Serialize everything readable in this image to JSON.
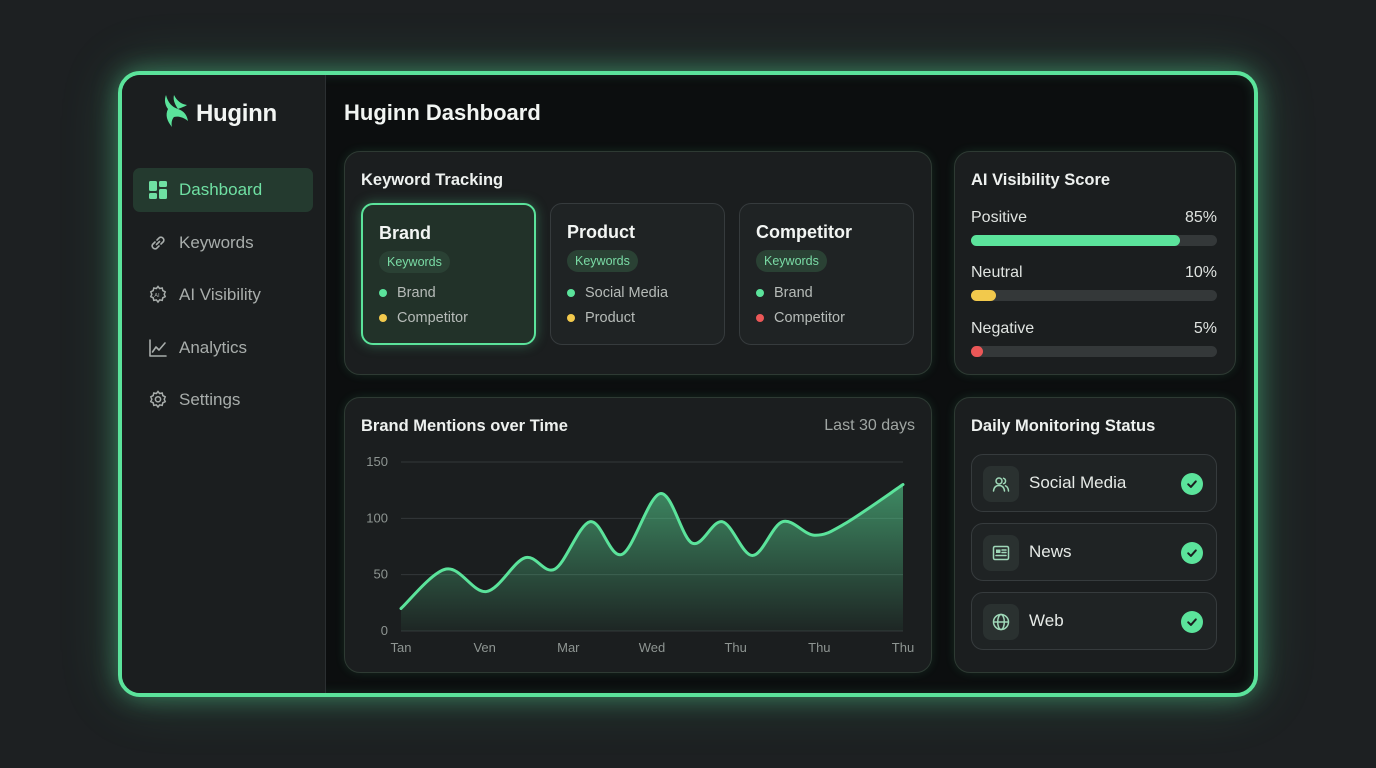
{
  "app": {
    "name": "Huginn"
  },
  "sidebar": {
    "items": [
      {
        "label": "Dashboard",
        "icon": "dashboard-icon",
        "active": true
      },
      {
        "label": "Keywords",
        "icon": "link-icon",
        "active": false
      },
      {
        "label": "AI Visibility",
        "icon": "ai-gear-icon",
        "active": false
      },
      {
        "label": "Analytics",
        "icon": "line-chart-icon",
        "active": false
      },
      {
        "label": "Settings",
        "icon": "gear-icon",
        "active": false
      }
    ]
  },
  "header": {
    "title": "Huginn Dashboard"
  },
  "keyword_tracking": {
    "title": "Keyword Tracking",
    "cards": [
      {
        "name": "Brand",
        "badge": "Keywords",
        "items": [
          {
            "label": "Brand",
            "color": "#5be39b"
          },
          {
            "label": "Competitor",
            "color": "#f2c94c"
          }
        ]
      },
      {
        "name": "Product",
        "badge": "Keywords",
        "items": [
          {
            "label": "Social Media",
            "color": "#5be39b"
          },
          {
            "label": "Product",
            "color": "#f2c94c"
          }
        ]
      },
      {
        "name": "Competitor",
        "badge": "Keywords",
        "items": [
          {
            "label": "Brand",
            "color": "#5be39b"
          },
          {
            "label": "Competitor",
            "color": "#eb5757"
          }
        ]
      }
    ]
  },
  "ai_visibility": {
    "title": "AI Visibility Score",
    "rows": [
      {
        "label": "Positive",
        "pct_text": "85%",
        "value": 0.85,
        "color": "#5be39b"
      },
      {
        "label": "Neutral",
        "pct_text": "10%",
        "value": 0.1,
        "color": "#f2c94c"
      },
      {
        "label": "Negative",
        "pct_text": "5%",
        "value": 0.05,
        "color": "#eb5757"
      }
    ]
  },
  "mentions": {
    "title": "Brand Mentions over Time",
    "range": "Last 30 days"
  },
  "chart_data": {
    "type": "area",
    "title": "Brand Mentions over Time",
    "x_ticks": [
      "Tan",
      "Ven",
      "Mar",
      "Wed",
      "Thu",
      "Thu",
      "Thu"
    ],
    "y_ticks": [
      0,
      50,
      100,
      150
    ],
    "ylim": [
      0,
      150
    ],
    "xlim": [
      0,
      30
    ],
    "grid": true,
    "color": "#5be39b",
    "x": [
      0,
      2.7,
      5.1,
      7.4,
      9.2,
      11.3,
      13.2,
      15.5,
      17.4,
      19.2,
      21,
      22.8,
      24.7,
      26.5,
      30
    ],
    "y": [
      20,
      55,
      35,
      65,
      55,
      97,
      68,
      122,
      78,
      97,
      67,
      97,
      85,
      95,
      130
    ]
  },
  "monitoring": {
    "title": "Daily Monitoring Status",
    "items": [
      {
        "label": "Social Media",
        "icon": "users-icon",
        "status": "ok"
      },
      {
        "label": "News",
        "icon": "newspaper-icon",
        "status": "ok"
      },
      {
        "label": "Web",
        "icon": "globe-icon",
        "status": "ok"
      }
    ]
  }
}
